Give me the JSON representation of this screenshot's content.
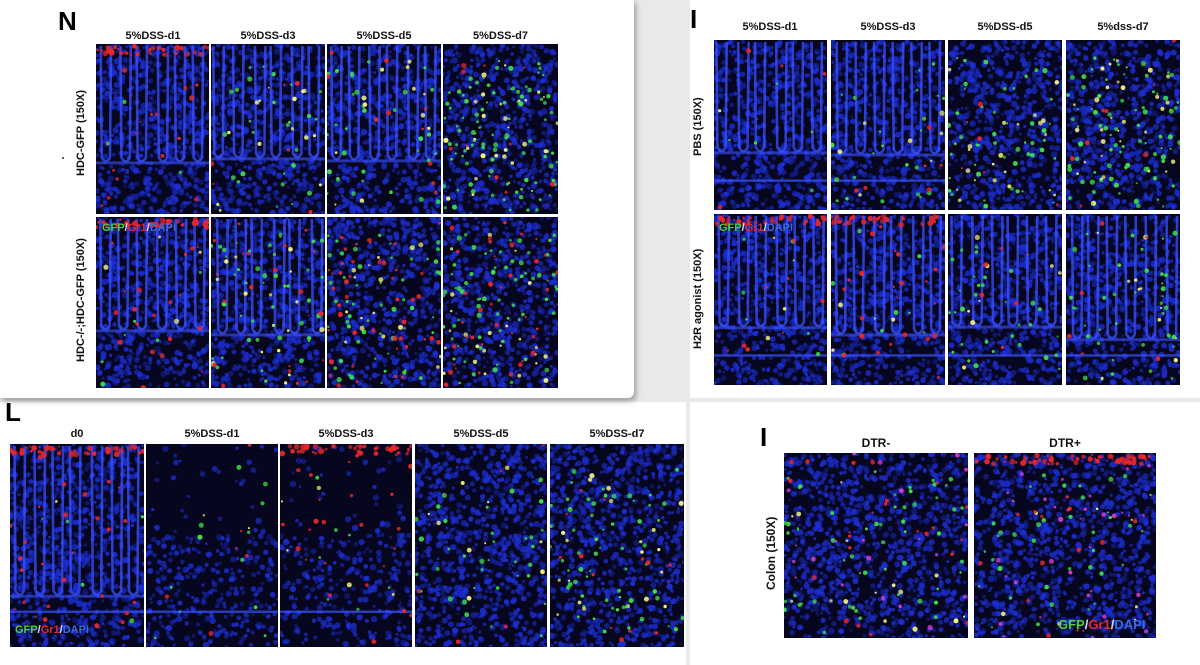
{
  "panel_n": {
    "letter": "N",
    "columns": [
      "5%DSS-d1",
      "5%DSS-d3",
      "5%DSS-d5",
      "5%DSS-d7"
    ],
    "rows": [
      "HDC-GFP (150X)",
      "HDC-/-;HDC-GFP (150X)"
    ],
    "legend": {
      "gfp": "GFP",
      "sep1": "/",
      "gr1": "Gr1",
      "sep2": "/",
      "dapi": "DAPI"
    }
  },
  "panel_i_top": {
    "letter": "I",
    "columns": [
      "5%DSS-d1",
      "5%DSS-d3",
      "5%DSS-d5",
      "5%dss-d7"
    ],
    "rows": [
      "PBS (150X)",
      "H2R agonist (150X)"
    ],
    "legend": {
      "gfp": "GFP",
      "sep1": "/",
      "gr1": "Gr1",
      "sep2": "/",
      "dapi": "DAPI"
    }
  },
  "panel_l": {
    "letter": "L",
    "columns": [
      "d0",
      "5%DSS-d1",
      "5%DSS-d3",
      "5%DSS-d5",
      "5%DSS-d7"
    ],
    "legend": {
      "gfp": "GFP",
      "sep1": "/",
      "gr1": "Gr1",
      "sep2": "/",
      "dapi": "DAPI"
    }
  },
  "panel_i_bottom": {
    "letter": "I",
    "columns": [
      "DTR-",
      "DTR+"
    ],
    "rows": [
      "Colon (150X)"
    ],
    "legend": {
      "gfp": "GFP",
      "sep1": "/",
      "gr1": "Gr1",
      "sep2": "/",
      "dapi": "DAPI"
    }
  },
  "colors": {
    "background": "#06061e",
    "dapi": "#1d2fd6",
    "gfp": "#3ee04a",
    "gr1": "#e8272b",
    "merge": "#f2f27a"
  }
}
